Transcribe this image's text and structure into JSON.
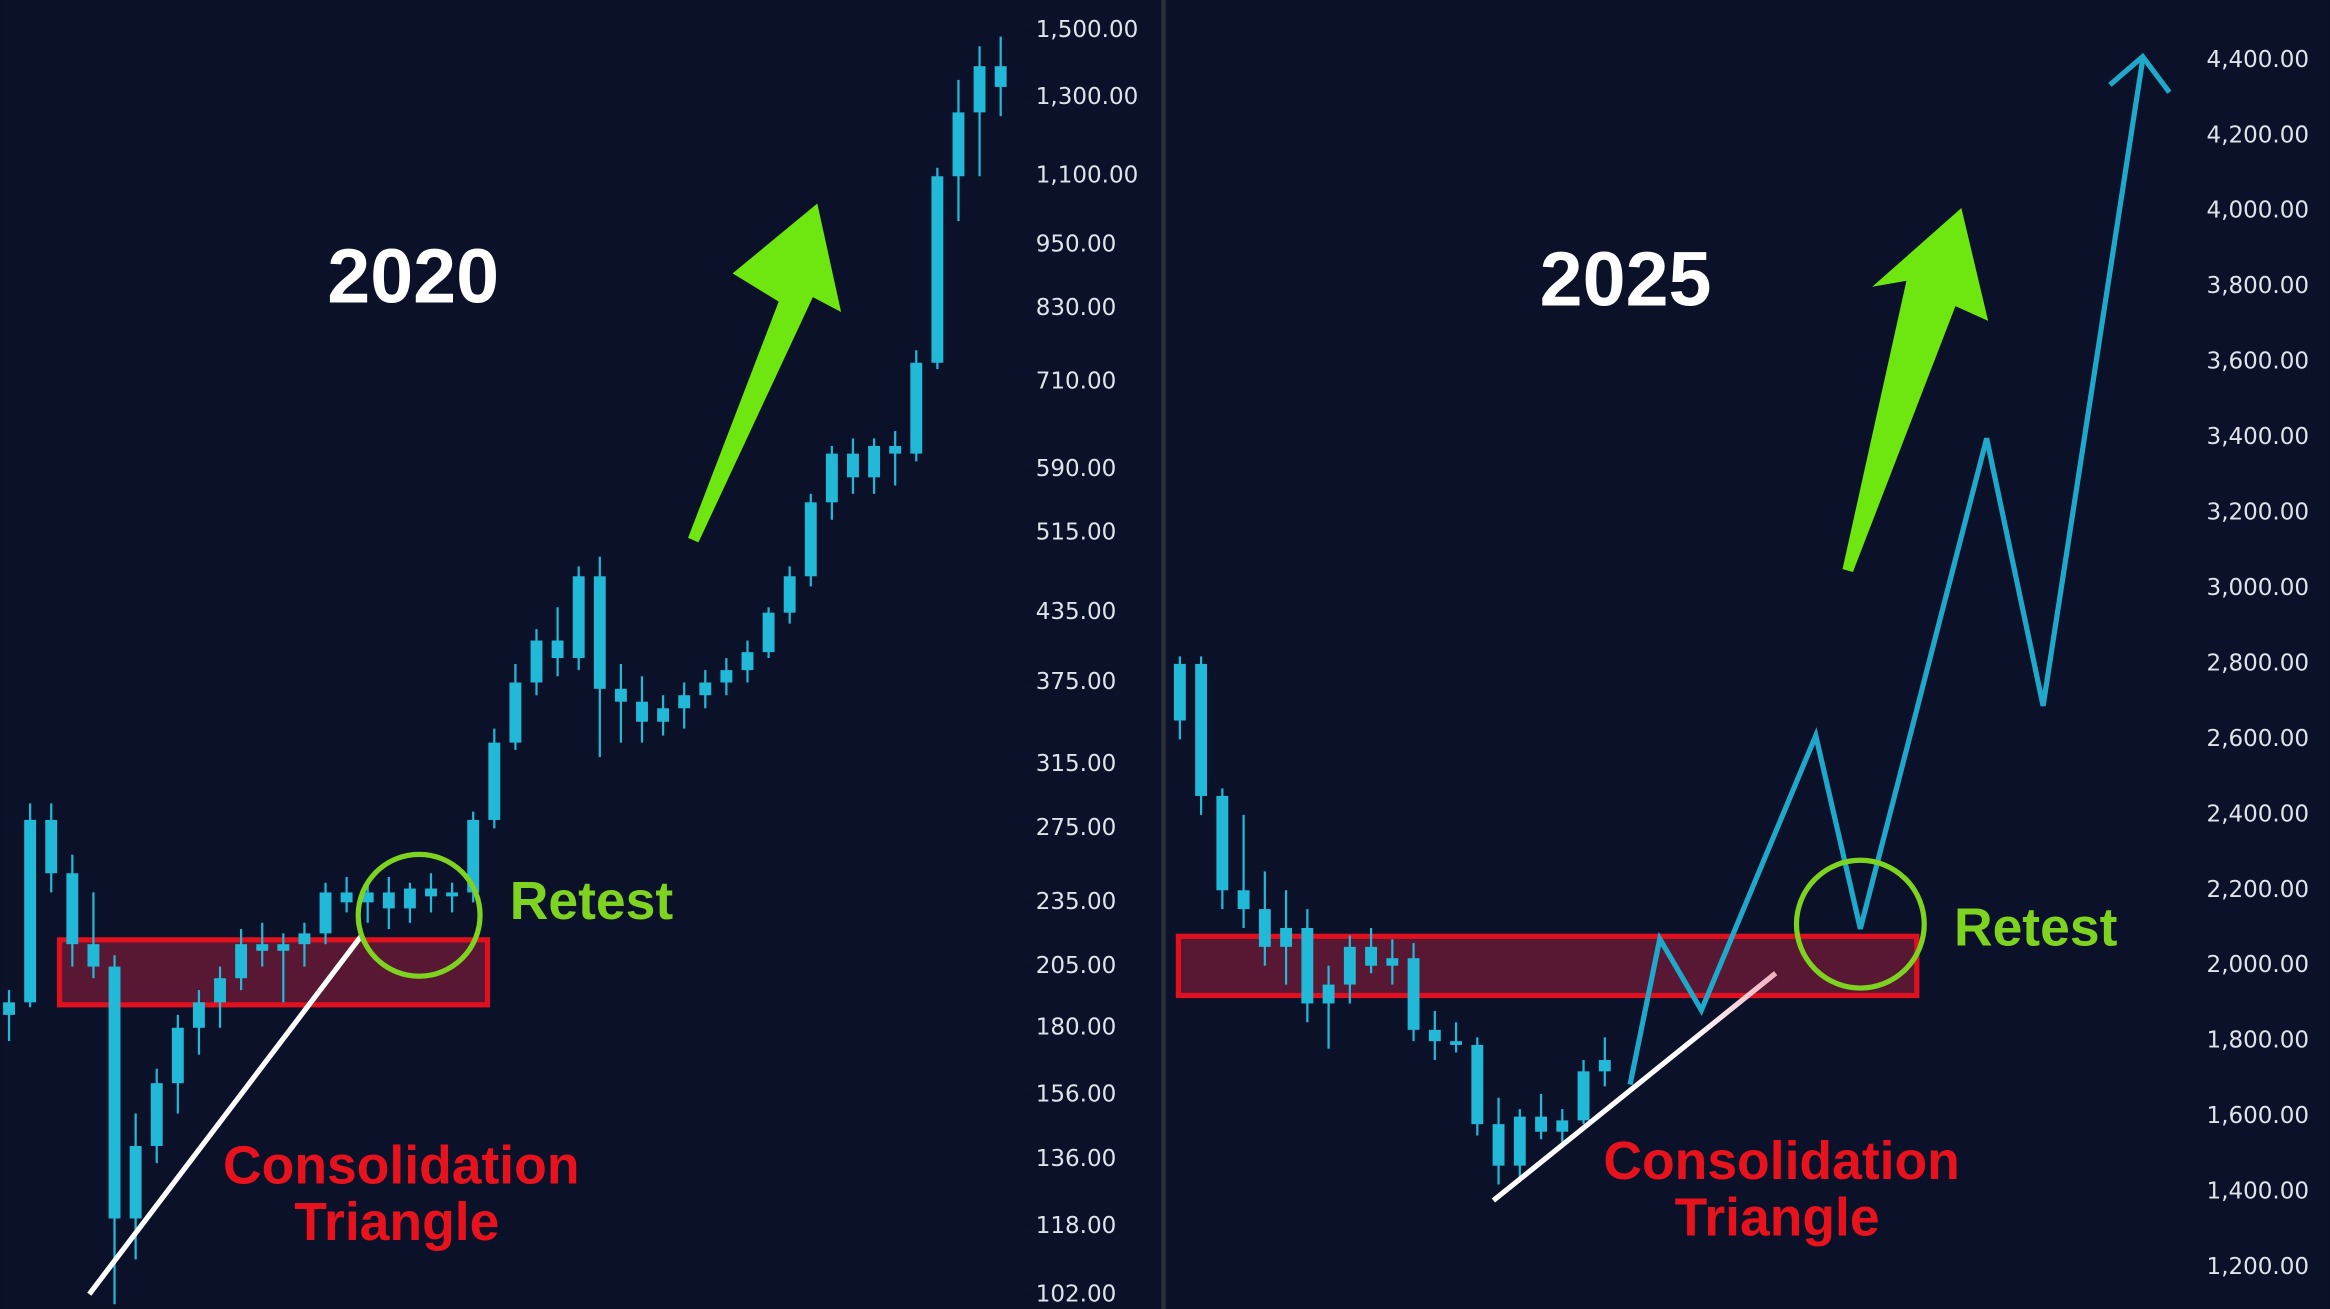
{
  "chart_data": [
    {
      "type": "candlestick",
      "title": "2020",
      "log_scale": true,
      "color": "#22b8d8",
      "ylim": [
        99,
        1600
      ],
      "yticks": [
        {
          "value": 1500,
          "label": "1,500.00"
        },
        {
          "value": 1300,
          "label": "1,300.00"
        },
        {
          "value": 1100,
          "label": "1,100.00"
        },
        {
          "value": 950,
          "label": "950.00"
        },
        {
          "value": 830,
          "label": "830.00"
        },
        {
          "value": 710,
          "label": "710.00"
        },
        {
          "value": 590,
          "label": "590.00"
        },
        {
          "value": 515,
          "label": "515.00"
        },
        {
          "value": 435,
          "label": "435.00"
        },
        {
          "value": 375,
          "label": "375.00"
        },
        {
          "value": 315,
          "label": "315.00"
        },
        {
          "value": 275,
          "label": "275.00"
        },
        {
          "value": 235,
          "label": "235.00"
        },
        {
          "value": 205,
          "label": "205.00"
        },
        {
          "value": 180,
          "label": "180.00"
        },
        {
          "value": 156,
          "label": "156.00"
        },
        {
          "value": 136,
          "label": "136.00"
        },
        {
          "value": 118,
          "label": "118.00"
        },
        {
          "value": 102,
          "label": "102.00"
        }
      ],
      "open": [
        185,
        190,
        280,
        250,
        215,
        205,
        120,
        140,
        160,
        180,
        190,
        200,
        215,
        212,
        215,
        220,
        240,
        235,
        240,
        232,
        242,
        238,
        240,
        280,
        330,
        375,
        410,
        395,
        470,
        370,
        360,
        345,
        355,
        365,
        375,
        385,
        400,
        435,
        470,
        550,
        610,
        580,
        620,
        610,
        740,
        1100,
        1260,
        1390
      ],
      "high": [
        195,
        290,
        290,
        260,
        240,
        210,
        150,
        165,
        185,
        195,
        205,
        222,
        225,
        220,
        225,
        245,
        248,
        245,
        248,
        245,
        250,
        245,
        285,
        340,
        390,
        420,
        440,
        480,
        490,
        390,
        380,
        365,
        375,
        385,
        395,
        410,
        440,
        480,
        560,
        620,
        630,
        630,
        640,
        760,
        1120,
        1350,
        1450,
        1480
      ],
      "low": [
        175,
        188,
        240,
        205,
        200,
        100,
        110,
        135,
        150,
        170,
        180,
        195,
        205,
        190,
        205,
        215,
        230,
        225,
        222,
        225,
        230,
        230,
        235,
        275,
        325,
        365,
        380,
        385,
        320,
        330,
        330,
        335,
        340,
        355,
        365,
        375,
        395,
        425,
        460,
        530,
        560,
        560,
        570,
        600,
        730,
        1000,
        1100,
        1250
      ],
      "close": [
        190,
        280,
        250,
        215,
        205,
        120,
        140,
        160,
        180,
        190,
        200,
        215,
        212,
        215,
        220,
        240,
        235,
        240,
        232,
        242,
        238,
        240,
        280,
        330,
        375,
        410,
        395,
        470,
        370,
        360,
        345,
        355,
        365,
        375,
        385,
        400,
        435,
        470,
        550,
        610,
        580,
        620,
        610,
        740,
        1100,
        1260,
        1390,
        1330
      ],
      "zone": [
        189,
        217
      ],
      "retest_label": "Retest",
      "pattern_label": [
        "Consolidation",
        "Triangle"
      ]
    },
    {
      "type": "candlestick",
      "title": "2025",
      "log_scale": false,
      "color": "#22b8d8",
      "ylim": [
        1090,
        4560
      ],
      "yticks": [
        {
          "value": 4400,
          "label": "4,400.00"
        },
        {
          "value": 4200,
          "label": "4,200.00"
        },
        {
          "value": 4000,
          "label": "4,000.00"
        },
        {
          "value": 3800,
          "label": "3,800.00"
        },
        {
          "value": 3600,
          "label": "3,600.00"
        },
        {
          "value": 3400,
          "label": "3,400.00"
        },
        {
          "value": 3200,
          "label": "3,200.00"
        },
        {
          "value": 3000,
          "label": "3,000.00"
        },
        {
          "value": 2800,
          "label": "2,800.00"
        },
        {
          "value": 2600,
          "label": "2,600.00"
        },
        {
          "value": 2400,
          "label": "2,400.00"
        },
        {
          "value": 2200,
          "label": "2,200.00"
        },
        {
          "value": 2000,
          "label": "2,000.00"
        },
        {
          "value": 1800,
          "label": "1,800.00"
        },
        {
          "value": 1600,
          "label": "1,600.00"
        },
        {
          "value": 1400,
          "label": "1,400.00"
        },
        {
          "value": 1200,
          "label": "1,200.00"
        }
      ],
      "open": [
        2650,
        2800,
        2450,
        2200,
        2150,
        2050,
        2100,
        1900,
        1950,
        2050,
        2000,
        2020,
        1830,
        1800,
        1790,
        1580,
        1470,
        1600,
        1560,
        1590,
        1720
      ],
      "high": [
        2820,
        2820,
        2470,
        2400,
        2250,
        2200,
        2150,
        2000,
        2080,
        2100,
        2070,
        2060,
        1880,
        1850,
        1810,
        1650,
        1620,
        1660,
        1620,
        1750,
        1810
      ],
      "low": [
        2600,
        2400,
        2150,
        2100,
        2000,
        1950,
        1850,
        1780,
        1900,
        1980,
        1950,
        1800,
        1750,
        1770,
        1550,
        1420,
        1440,
        1540,
        1530,
        1580,
        1680
      ],
      "close": [
        2800,
        2450,
        2200,
        2150,
        2050,
        2100,
        1900,
        1950,
        2050,
        2000,
        2020,
        1830,
        1800,
        1790,
        1580,
        1470,
        1600,
        1560,
        1590,
        1720,
        1750
      ],
      "projection": {
        "color": "#1fa8c9",
        "values": [
          1685,
          2071,
          1882,
          2610,
          2098,
          3398,
          2689,
          4402
        ]
      },
      "zone": [
        1921,
        2078
      ],
      "retest_label": "Retest",
      "pattern_label": [
        "Consolidation",
        "Triangle"
      ]
    }
  ]
}
